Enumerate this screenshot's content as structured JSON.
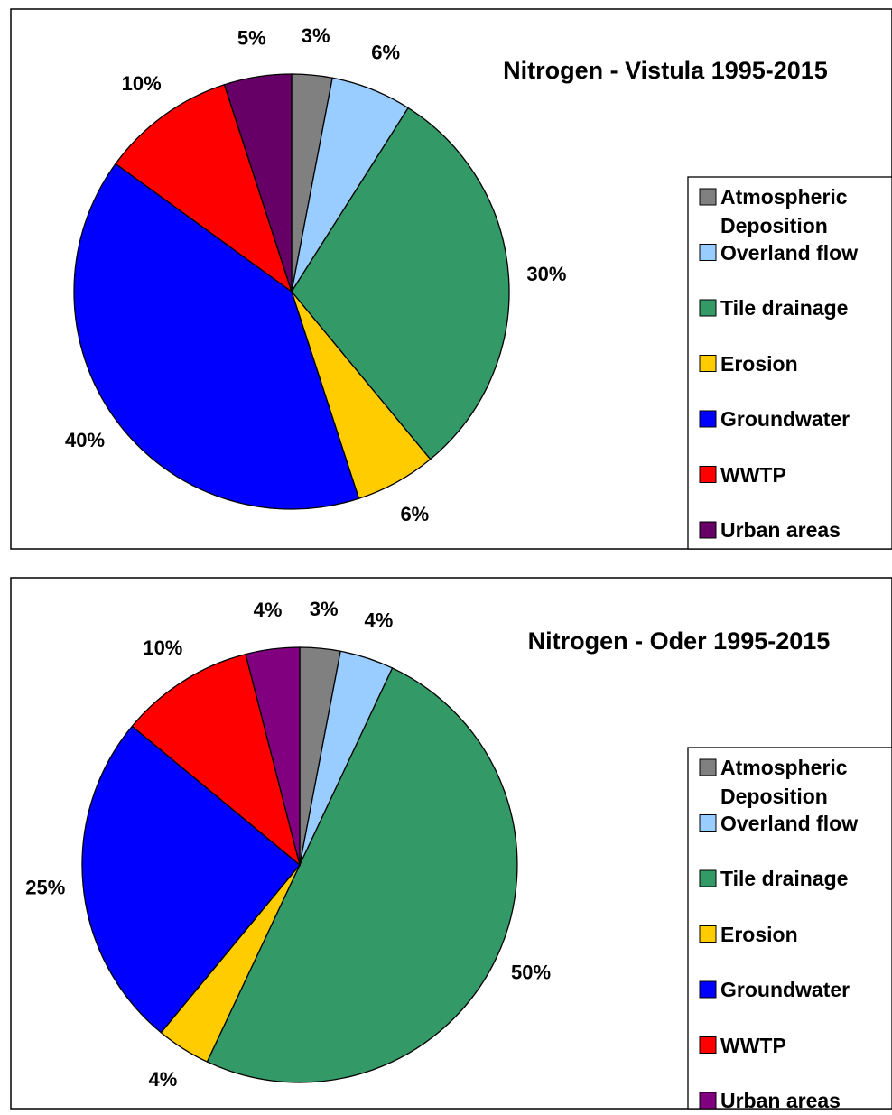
{
  "chart_data": [
    {
      "type": "pie",
      "title": "Nitrogen - Vistula 1995-2015",
      "categories": [
        "Atmospheric Deposition",
        "Overland flow",
        "Tile drainage",
        "Erosion",
        "Groundwater",
        "WWTP",
        "Urban areas"
      ],
      "values": [
        3,
        6,
        30,
        6,
        40,
        10,
        5
      ],
      "value_labels": [
        "3%",
        "6%",
        "30%",
        "6%",
        "40%",
        "10%",
        "5%"
      ],
      "colors": [
        "#808080",
        "#99ccff",
        "#339966",
        "#ffcc00",
        "#0000ff",
        "#ff0000",
        "#660066"
      ],
      "legend": "right"
    },
    {
      "type": "pie",
      "title": "Nitrogen - Oder 1995-2015",
      "categories": [
        "Atmospheric Deposition",
        "Overland flow",
        "Tile drainage",
        "Erosion",
        "Groundwater",
        "WWTP",
        "Urban areas"
      ],
      "values": [
        3,
        4,
        50,
        4,
        25,
        10,
        4
      ],
      "value_labels": [
        "3%",
        "4%",
        "50%",
        "4%",
        "25%",
        "10%",
        "4%"
      ],
      "colors": [
        "#808080",
        "#99ccff",
        "#339966",
        "#ffcc00",
        "#0000ff",
        "#ff0000",
        "#800080"
      ],
      "legend": "right"
    }
  ]
}
